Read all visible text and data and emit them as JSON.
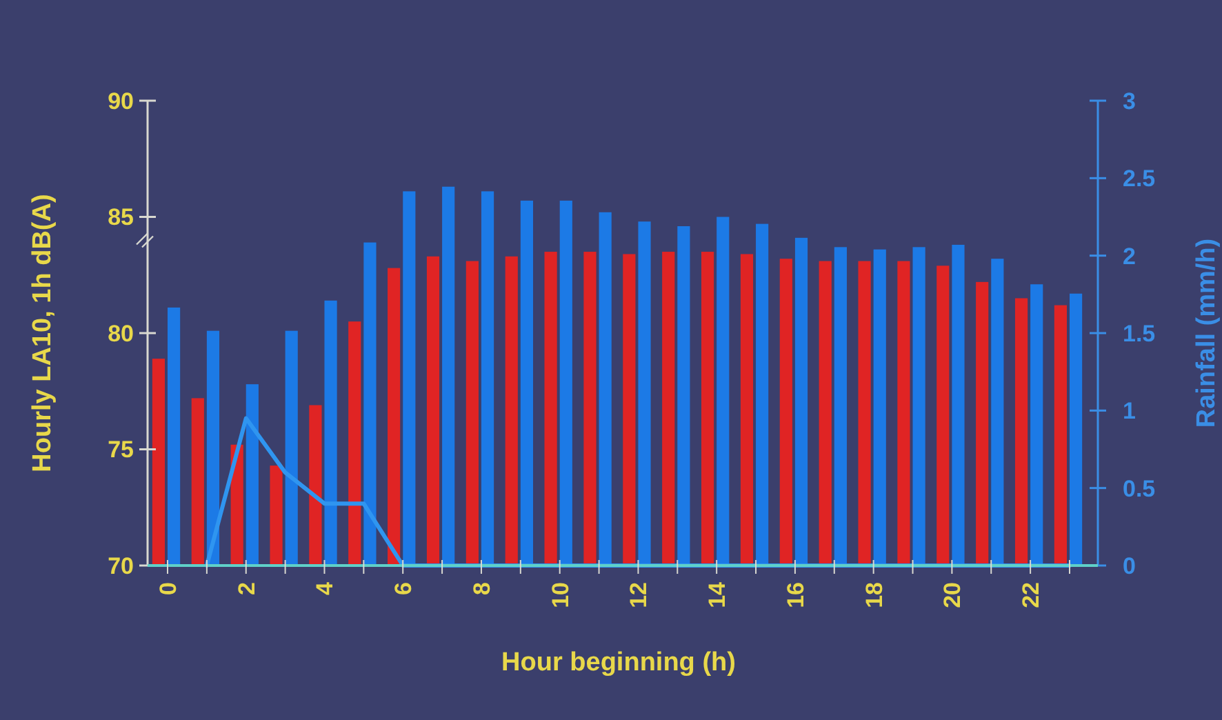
{
  "chart_data": {
    "type": "bar",
    "xlabel": "Hour beginning (h)",
    "ylabel": "Hourly LA10, 1h dB(A)",
    "y2label": "Rainfall (mm/h)",
    "categories": [
      "0",
      null,
      "2",
      null,
      "4",
      null,
      "6",
      null,
      "8",
      null,
      "10",
      null,
      "12",
      null,
      "14",
      null,
      "16",
      null,
      "18",
      null,
      "20",
      null,
      "22",
      null
    ],
    "series": [
      {
        "color": "#e02424",
        "values": [
          78.9,
          77.2,
          75.2,
          74.3,
          76.9,
          80.5,
          82.8,
          83.3,
          83.1,
          83.3,
          83.5,
          83.5,
          83.4,
          83.5,
          83.5,
          83.4,
          83.2,
          83.1,
          83.1,
          83.1,
          82.9,
          82.2,
          81.5,
          81.2
        ]
      },
      {
        "color": "#1c7ae6",
        "values": [
          81.1,
          80.1,
          77.8,
          80.1,
          81.4,
          83.9,
          86.1,
          86.3,
          86.1,
          85.7,
          85.7,
          85.2,
          84.8,
          84.6,
          85.0,
          84.7,
          84.1,
          83.7,
          83.6,
          83.7,
          83.8,
          83.2,
          82.1,
          81.7
        ]
      },
      {
        "type": "line",
        "axis": "y2",
        "color": "#2f95f0",
        "values": [
          null,
          0,
          0.95,
          0.6,
          0.4,
          0.4,
          0,
          0,
          0,
          0,
          0,
          0,
          0,
          0,
          0,
          0,
          0,
          0,
          0,
          0,
          0,
          0,
          0,
          0
        ]
      }
    ],
    "ylim": [
      70,
      90
    ],
    "yticks": [
      70,
      75,
      80,
      85,
      90
    ],
    "y2lim": [
      0,
      3
    ],
    "y2ticks": [
      0,
      0.5,
      1,
      1.5,
      2,
      2.5,
      3
    ],
    "marker": "none",
    "line_style": "solid",
    "grid": false
  }
}
